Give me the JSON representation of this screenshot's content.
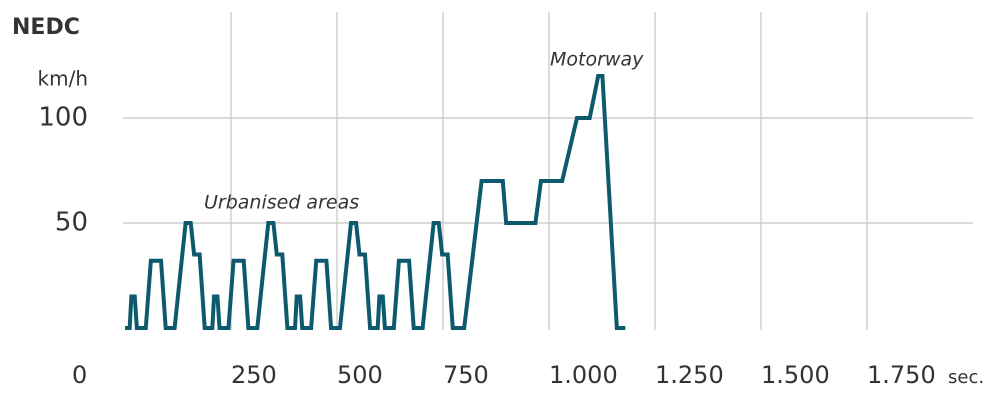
{
  "chart_data": {
    "type": "line",
    "title": "NEDC",
    "y_label": "km/h",
    "x_label": "sec.",
    "annotations": [
      "Urbanised areas",
      "Motorway"
    ],
    "x": [
      0,
      11,
      15,
      23,
      28,
      49,
      61,
      85,
      96,
      117,
      143,
      155,
      163,
      176,
      188,
      195,
      206,
      210,
      218,
      223,
      244,
      256,
      280,
      291,
      312,
      338,
      350,
      358,
      371,
      383,
      390,
      401,
      405,
      413,
      418,
      439,
      451,
      475,
      486,
      507,
      533,
      545,
      553,
      566,
      578,
      585,
      596,
      600,
      608,
      613,
      634,
      646,
      670,
      681,
      702,
      728,
      740,
      748,
      761,
      773,
      780,
      800,
      841,
      891,
      899,
      968,
      981,
      1031,
      1066,
      1096,
      1116,
      1126,
      1160,
      1180
    ],
    "series": [
      {
        "color": "#0d5a6e",
        "values": [
          0,
          0,
          15,
          15,
          0,
          0,
          32,
          32,
          0,
          0,
          50,
          50,
          35,
          35,
          0,
          0,
          0,
          15,
          15,
          0,
          0,
          32,
          32,
          0,
          0,
          50,
          50,
          35,
          35,
          0,
          0,
          0,
          15,
          15,
          0,
          0,
          32,
          32,
          0,
          0,
          50,
          50,
          35,
          35,
          0,
          0,
          0,
          15,
          15,
          0,
          0,
          32,
          32,
          0,
          0,
          50,
          50,
          35,
          35,
          0,
          0,
          0,
          70,
          70,
          50,
          50,
          70,
          70,
          100,
          100,
          120,
          120,
          0,
          0
        ]
      }
    ],
    "xlim": [
      0,
      2000
    ],
    "ylim": [
      0,
      150
    ],
    "xticks": [
      0,
      250,
      500,
      750,
      {
        "value": 1000,
        "label": "1.000"
      },
      {
        "value": 1250,
        "label": "1.250"
      },
      {
        "value": 1500,
        "label": "1.500"
      },
      {
        "value": 1750,
        "label": "1.750"
      }
    ],
    "yticks": [
      50,
      100
    ],
    "grid": true
  }
}
